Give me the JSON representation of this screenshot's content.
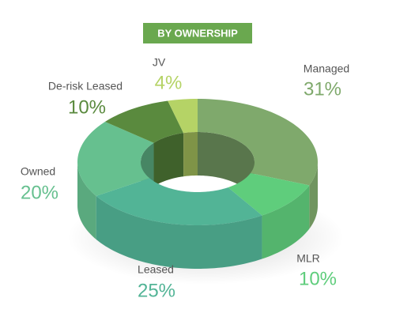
{
  "chart_data": {
    "type": "donut3d",
    "title": "BY OWNERSHIP",
    "categories": [
      "Managed",
      "MLR",
      "Leased",
      "Owned",
      "De-risk Leased",
      "JV"
    ],
    "values": [
      31,
      10,
      25,
      20,
      10,
      4
    ],
    "value_labels": [
      "31%",
      "10%",
      "25%",
      "20%",
      "10%",
      "4%"
    ],
    "colors": [
      "#7fa96c",
      "#5fcd7c",
      "#52b496",
      "#66c08f",
      "#5a8a3e",
      "#b5d366"
    ]
  }
}
